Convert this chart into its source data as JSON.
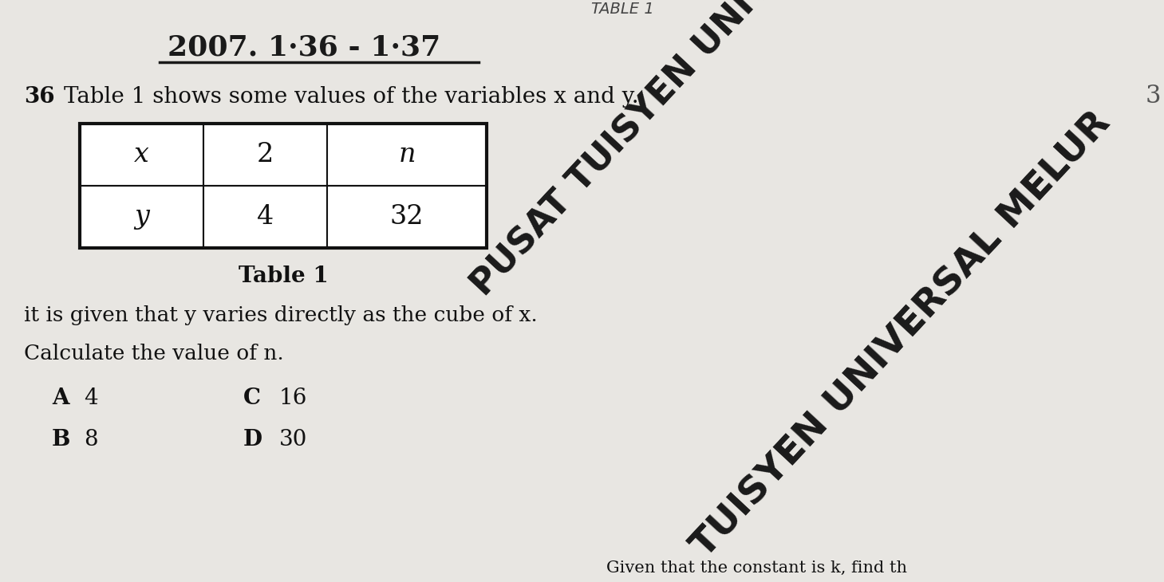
{
  "bg_color": "#e8e6e2",
  "title_text": "TABLE 1",
  "ref_text": "2007. 1·36 - 1·37",
  "question_number": "36",
  "question_text": "Table 1 shows some values of the variables x and y.",
  "table_caption": "Table 1",
  "table_headers": [
    "x",
    "2",
    "n"
  ],
  "table_row2": [
    "y",
    "4",
    "32"
  ],
  "instruction1": "it is given that y varies directly as the cube of x.",
  "instruction2": "Calculate the value of n.",
  "options": [
    [
      "A",
      "4"
    ],
    [
      "B",
      "8"
    ],
    [
      "C",
      "16"
    ],
    [
      "D",
      "30"
    ]
  ],
  "watermark1": "PUSAT TUISYEN UNIV",
  "watermark2": "TUISYEN UNIVERSAL MELUR",
  "bottom_text": "Given that the constant is k, find th",
  "bottom_label": "TUISYEN UNIVERSAL MELUR"
}
